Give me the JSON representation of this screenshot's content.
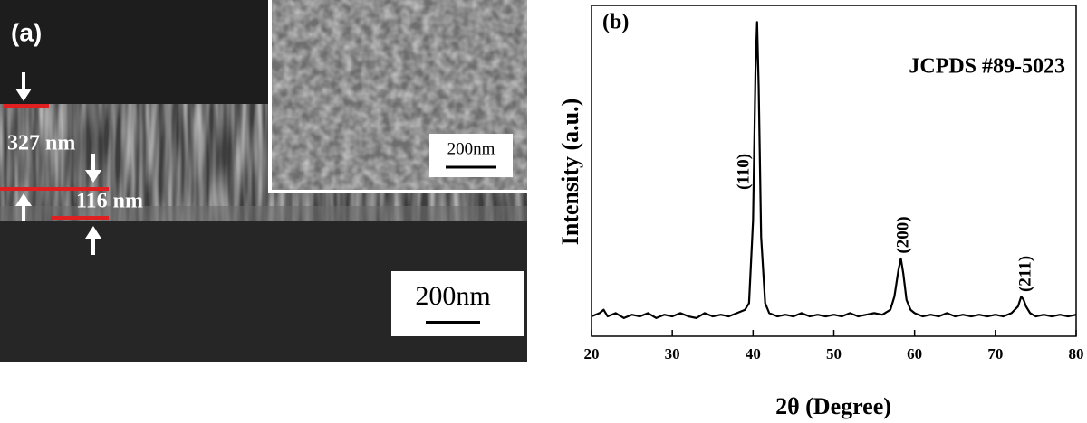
{
  "panel_a": {
    "label": "(a)",
    "thickness_total": "327 nm",
    "thickness_bottom": "116 nm",
    "inset_scale": "200nm",
    "main_scale": "200nm"
  },
  "chart_data": {
    "type": "line",
    "panel_label": "(b)",
    "annotation": "JCPDS #89-5023",
    "xlabel": "2θ (Degree)",
    "ylabel": "Intensity (a.u.)",
    "peak_labels": [
      "(110)",
      "(200)",
      "(211)"
    ],
    "color": "#000000",
    "x": [
      20,
      21,
      21.5,
      22,
      23,
      24,
      25,
      26,
      27,
      28,
      29,
      30,
      31,
      32,
      33,
      34,
      35,
      36,
      37,
      38,
      39,
      39.5,
      40,
      40.3,
      40.5,
      40.7,
      41,
      41.5,
      42,
      43,
      44,
      45,
      46,
      47,
      48,
      49,
      50,
      51,
      52,
      53,
      54,
      55,
      56,
      57,
      57.5,
      58,
      58.3,
      58.6,
      59,
      59.5,
      60,
      61,
      62,
      63,
      64,
      65,
      66,
      67,
      68,
      69,
      70,
      71,
      72,
      72.8,
      73.2,
      73.5,
      73.8,
      74.3,
      75,
      76,
      77,
      78,
      79,
      80
    ],
    "values": [
      6,
      7,
      8,
      6,
      7,
      5.5,
      6.5,
      6,
      7,
      5.5,
      6.5,
      6,
      7,
      6,
      5.5,
      7,
      6,
      6.5,
      6,
      7,
      8,
      10,
      35,
      80,
      95,
      75,
      30,
      10,
      7,
      6,
      6.5,
      6,
      7,
      6,
      6.5,
      6,
      6.5,
      6,
      7,
      6,
      6.5,
      7,
      6.5,
      8,
      12,
      20,
      23.5,
      19,
      11,
      8,
      7,
      6,
      6.5,
      6,
      7,
      6,
      6.5,
      6,
      6.5,
      6,
      6.5,
      6,
      7,
      9,
      12,
      11,
      9,
      7,
      6,
      6.5,
      6,
      6.5,
      6,
      6.5
    ],
    "xlim": [
      20,
      80
    ],
    "ylim": [
      0,
      100
    ],
    "xticks": [
      20,
      30,
      40,
      50,
      60,
      70,
      80
    ]
  }
}
